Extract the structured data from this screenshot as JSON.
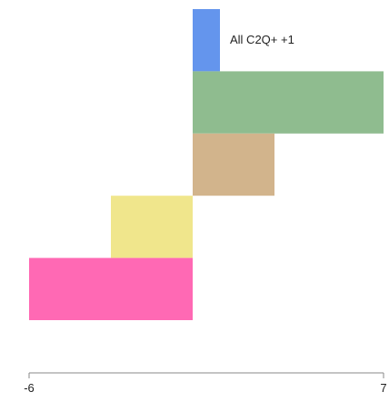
{
  "chart_data": {
    "type": "bar",
    "orientation": "horizontal",
    "stacking": "waterfall",
    "title": "",
    "xlabel": "",
    "ylabel": "",
    "xlim": [
      -6,
      7
    ],
    "ticks": [
      "-6",
      "7"
    ],
    "bars": [
      {
        "start": 0,
        "end": 1,
        "color": "#6495ED",
        "label": "All C2Q+ +1"
      },
      {
        "start": 0,
        "end": 7,
        "color": "#8FBC8F"
      },
      {
        "start": 0,
        "end": 3,
        "color": "#D2B48C"
      },
      {
        "start": -3,
        "end": 0,
        "color": "#F0E68C"
      },
      {
        "start": -6,
        "end": 0,
        "color": "#FF69B4"
      }
    ],
    "grid": false,
    "legend": "none"
  }
}
